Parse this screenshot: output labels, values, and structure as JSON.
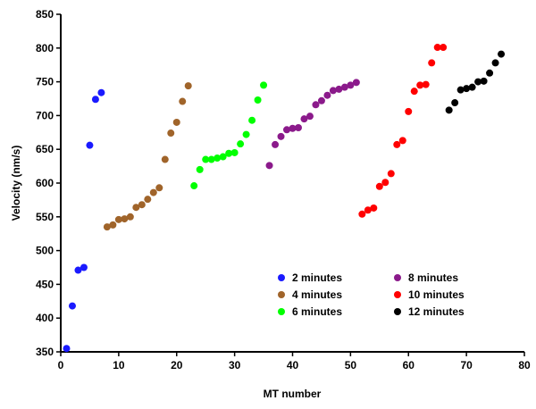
{
  "chart_data": {
    "type": "scatter",
    "title": "",
    "xlabel": "MT number",
    "ylabel": "Velocity (nm/s)",
    "xlim": [
      0,
      80
    ],
    "ylim": [
      350,
      850
    ],
    "xticks": [
      "0",
      "10",
      "20",
      "30",
      "40",
      "50",
      "60",
      "70",
      "80"
    ],
    "yticks": [
      "350",
      "400",
      "450",
      "500",
      "550",
      "600",
      "650",
      "700",
      "750",
      "800",
      "850"
    ],
    "grid": false,
    "legend_position": "bottom-center",
    "series": [
      {
        "name": "2 minutes",
        "color": "#1a1aff",
        "x": [
          1,
          2,
          3,
          4,
          5,
          6,
          7
        ],
        "y": [
          355,
          418,
          471,
          475,
          656,
          724,
          734
        ]
      },
      {
        "name": "4 minutes",
        "color": "#a0642a",
        "x": [
          8,
          9,
          10,
          11,
          12,
          13,
          14,
          15,
          16,
          17,
          18,
          19,
          20,
          21,
          22
        ],
        "y": [
          535,
          538,
          546,
          547,
          550,
          564,
          568,
          576,
          586,
          593,
          635,
          674,
          690,
          721,
          744
        ]
      },
      {
        "name": "6 minutes",
        "color": "#00ff00",
        "x": [
          23,
          24,
          25,
          26,
          27,
          28,
          29,
          30,
          31,
          32,
          33,
          34,
          35
        ],
        "y": [
          596,
          620,
          635,
          635,
          637,
          639,
          644,
          645,
          658,
          672,
          693,
          723,
          745
        ]
      },
      {
        "name": "8 minutes",
        "color": "#8b1a8b",
        "x": [
          36,
          37,
          38,
          39,
          40,
          41,
          42,
          43,
          44,
          45,
          46,
          47,
          48,
          49,
          50,
          51
        ],
        "y": [
          626,
          657,
          669,
          679,
          681,
          682,
          695,
          699,
          716,
          722,
          730,
          737,
          739,
          742,
          745,
          749
        ]
      },
      {
        "name": "10 minutes",
        "color": "#ff0000",
        "x": [
          52,
          53,
          54,
          55,
          56,
          57,
          58,
          59,
          60,
          61,
          62,
          63,
          64,
          65,
          66
        ],
        "y": [
          554,
          560,
          563,
          595,
          601,
          614,
          657,
          663,
          706,
          736,
          745,
          746,
          778,
          801,
          801
        ]
      },
      {
        "name": "12 minutes",
        "color": "#000000",
        "x": [
          67,
          68,
          69,
          70,
          71,
          72,
          73,
          74,
          75,
          76
        ],
        "y": [
          708,
          719,
          738,
          740,
          742,
          750,
          751,
          763,
          778,
          791
        ]
      }
    ]
  }
}
